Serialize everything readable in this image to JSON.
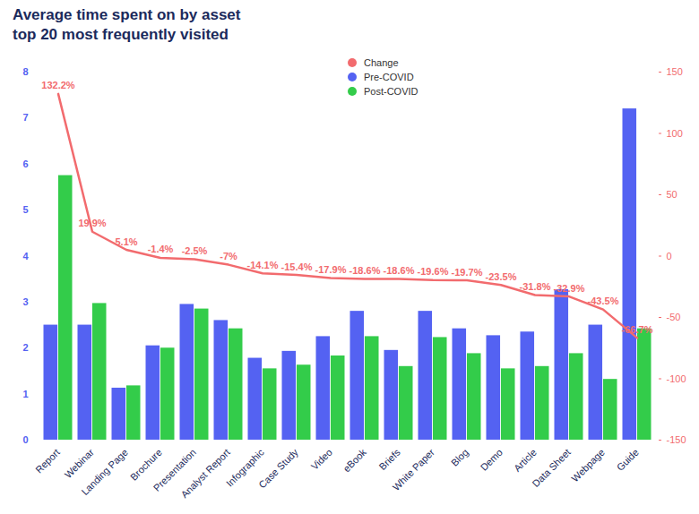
{
  "chart_data": {
    "type": "bar",
    "title": "Average time spent on by asset",
    "subtitle": "top 20 most frequently visited",
    "categories": [
      "Report",
      "Webinar",
      "Landing Page",
      "Brochure",
      "Presentation",
      "Analyst Report",
      "Infographic",
      "Case Study",
      "Video",
      "eBook",
      "Briefs",
      "White Paper",
      "Blog",
      "Demo",
      "Article",
      "Data Sheet",
      "Webpage",
      "Guide"
    ],
    "series": [
      {
        "name": "Change",
        "type": "line",
        "axis": "y2",
        "color": "#f26b6e",
        "data_labels": true,
        "values": [
          132.2,
          19.9,
          5.1,
          -1.4,
          -2.5,
          -7,
          -14.1,
          -15.4,
          -17.9,
          -18.6,
          -18.6,
          -19.6,
          -19.7,
          -23.5,
          -31.8,
          -32.9,
          -43.5,
          -66.7
        ],
        "value_labels": [
          "132.2%",
          "19.9%",
          "5.1%",
          "-1.4%",
          "-2.5%",
          "-7%",
          "-14.1%",
          "-15.4%",
          "-17.9%",
          "-18.6%",
          "-18.6%",
          "-19.6%",
          "-19.7%",
          "-23.5%",
          "-31.8%",
          "-32.9%",
          "-43.5%",
          "-66.7%"
        ]
      },
      {
        "name": "Pre-COVID",
        "type": "bar",
        "color": "#5462f2",
        "values": [
          2.5,
          2.5,
          1.13,
          2.05,
          2.95,
          2.6,
          1.78,
          1.93,
          2.25,
          2.8,
          1.95,
          2.8,
          2.42,
          2.27,
          2.35,
          3.27,
          2.5,
          7.2
        ]
      },
      {
        "name": "Post-COVID",
        "type": "bar",
        "color": "#33cc4a",
        "values": [
          5.75,
          2.97,
          1.18,
          2.0,
          2.85,
          2.42,
          1.55,
          1.63,
          1.83,
          2.25,
          1.6,
          2.23,
          1.88,
          1.55,
          1.6,
          1.88,
          1.32,
          2.42
        ]
      }
    ],
    "ylim": [
      0,
      8
    ],
    "yticks": [
      0,
      1,
      2,
      3,
      4,
      5,
      6,
      7,
      8
    ],
    "y2lim": [
      -150,
      150
    ],
    "y2ticks": [
      -150,
      -100,
      -50,
      0,
      50,
      100,
      150
    ],
    "legend": "top",
    "grid": false
  }
}
